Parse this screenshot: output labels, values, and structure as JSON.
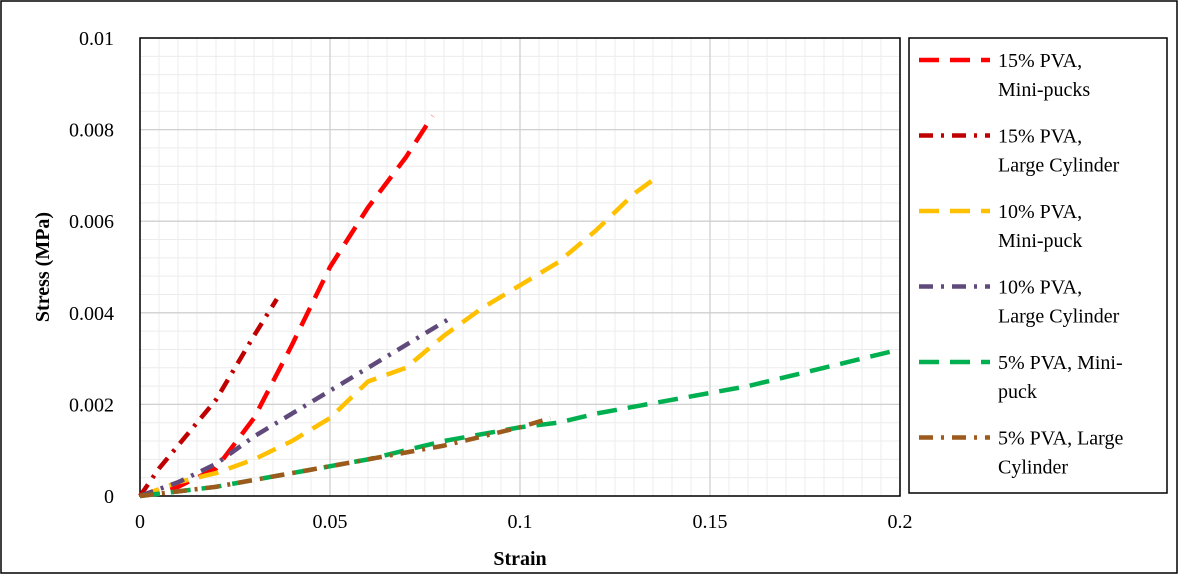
{
  "chart_data": {
    "type": "line",
    "title": "",
    "xlabel": "Strain",
    "ylabel": "Stress (MPa)",
    "xlim": [
      0,
      0.2
    ],
    "ylim": [
      0,
      0.01
    ],
    "x_ticks": [
      0,
      0.05,
      0.1,
      0.15,
      0.2
    ],
    "x_tick_labels": [
      "0",
      "0.05",
      "0.1",
      "0.15",
      "0.2"
    ],
    "y_ticks": [
      0,
      0.002,
      0.004,
      0.006,
      0.008,
      0.01
    ],
    "y_tick_labels": [
      "0",
      "0.002",
      "0.004",
      "0.006",
      "0.008",
      "0.01"
    ],
    "grid": true,
    "legend_position": "right",
    "series": [
      {
        "name": "15% PVA, Mini-pucks",
        "legend_lines": [
          "15% PVA,",
          "Mini-pucks"
        ],
        "color": "#ff0000",
        "dash": "long-dash",
        "x": [
          0,
          0.01,
          0.02,
          0.03,
          0.04,
          0.05,
          0.06,
          0.07,
          0.077
        ],
        "y": [
          0,
          0.0002,
          0.0006,
          0.0017,
          0.0033,
          0.005,
          0.0063,
          0.0074,
          0.0083
        ]
      },
      {
        "name": "15% PVA, Large Cylinder",
        "legend_lines": [
          "15% PVA,",
          "Large Cylinder"
        ],
        "color": "#c00000",
        "dash": "dash-dot",
        "x": [
          0,
          0.005,
          0.01,
          0.015,
          0.02,
          0.025,
          0.03,
          0.036
        ],
        "y": [
          0,
          0.0006,
          0.0011,
          0.0016,
          0.0021,
          0.0028,
          0.0035,
          0.0043
        ]
      },
      {
        "name": "10% PVA, Mini-puck",
        "legend_lines": [
          "10% PVA,",
          "Mini-puck"
        ],
        "color": "#ffc000",
        "dash": "long-dash",
        "x": [
          0,
          0.01,
          0.02,
          0.03,
          0.04,
          0.05,
          0.06,
          0.07,
          0.08,
          0.09,
          0.1,
          0.11,
          0.12,
          0.13,
          0.135
        ],
        "y": [
          0,
          0.0003,
          0.0005,
          0.0008,
          0.0012,
          0.0017,
          0.0025,
          0.0028,
          0.0035,
          0.0041,
          0.0046,
          0.0051,
          0.0058,
          0.0066,
          0.0069
        ]
      },
      {
        "name": "10% PVA, Large Cylinder",
        "legend_lines": [
          "10% PVA,",
          "Large Cylinder"
        ],
        "color": "#604a7b",
        "dash": "dash-dot",
        "x": [
          0,
          0.01,
          0.02,
          0.03,
          0.04,
          0.05,
          0.06,
          0.07,
          0.082
        ],
        "y": [
          0,
          0.0003,
          0.0007,
          0.0013,
          0.0018,
          0.0023,
          0.0028,
          0.0033,
          0.0039
        ]
      },
      {
        "name": "5% PVA, Mini-puck",
        "legend_lines": [
          "5% PVA, Mini-",
          "puck"
        ],
        "color": "#00b050",
        "dash": "long-dash",
        "x": [
          0,
          0.02,
          0.04,
          0.06,
          0.08,
          0.1,
          0.11,
          0.12,
          0.14,
          0.16,
          0.18,
          0.2
        ],
        "y": [
          0,
          0.0002,
          0.0005,
          0.0008,
          0.0012,
          0.0015,
          0.0016,
          0.0018,
          0.0021,
          0.0024,
          0.0028,
          0.0032
        ]
      },
      {
        "name": "5% PVA, Large Cylinder",
        "legend_lines": [
          "5% PVA, Large",
          "Cylinder"
        ],
        "color": "#9c5a1c",
        "dash": "dash-dot",
        "x": [
          0,
          0.02,
          0.04,
          0.06,
          0.08,
          0.09,
          0.1,
          0.108
        ],
        "y": [
          0,
          0.0002,
          0.0005,
          0.0008,
          0.0011,
          0.0013,
          0.0015,
          0.0017
        ]
      }
    ]
  }
}
